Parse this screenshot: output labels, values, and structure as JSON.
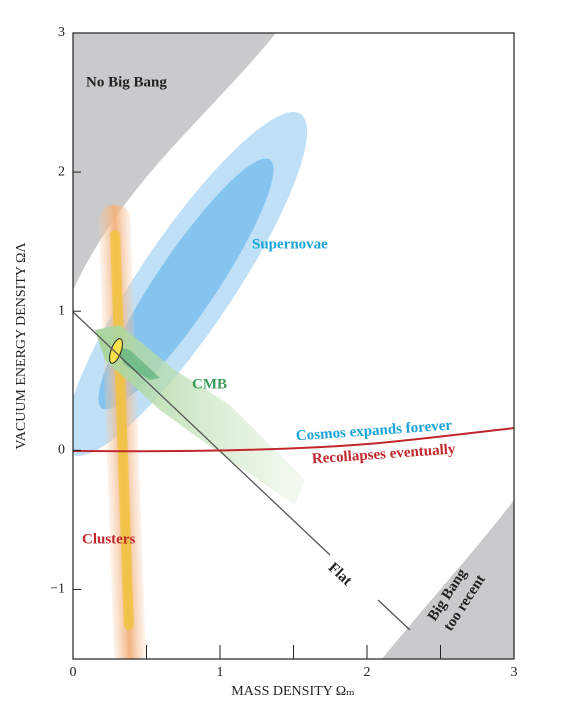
{
  "chart_data": {
    "type": "contour",
    "xlabel": "MASS DENSITY Ωₘ",
    "ylabel": "VACUUM ENERGY DENSITY ΩΛ",
    "xlim": [
      0,
      3
    ],
    "ylim": [
      -1.5,
      3
    ],
    "xticks": [
      0,
      1,
      2,
      3
    ],
    "xminorticks": [
      0.5,
      1.5,
      2.5
    ],
    "yticks": [
      {
        "value": -1,
        "label": "−1"
      },
      0,
      1,
      2,
      3
    ],
    "annotations": [
      {
        "text": "No Big Bang",
        "color": "#222222"
      },
      {
        "text": "Supernovae",
        "color": "#19a3d6"
      },
      {
        "text": "CMB",
        "color": "#3a9a5a"
      },
      {
        "text": "Cosmos expands forever",
        "color": "#19a3d6"
      },
      {
        "text": "Recollapses eventually",
        "color": "#c0282d"
      },
      {
        "text": "Clusters",
        "color": "#c0282d"
      },
      {
        "text": "Flat",
        "color": "#222222"
      },
      {
        "text": "Big Bang",
        "color": "#222222"
      },
      {
        "text": "too recent",
        "color": "#222222"
      }
    ]
  }
}
